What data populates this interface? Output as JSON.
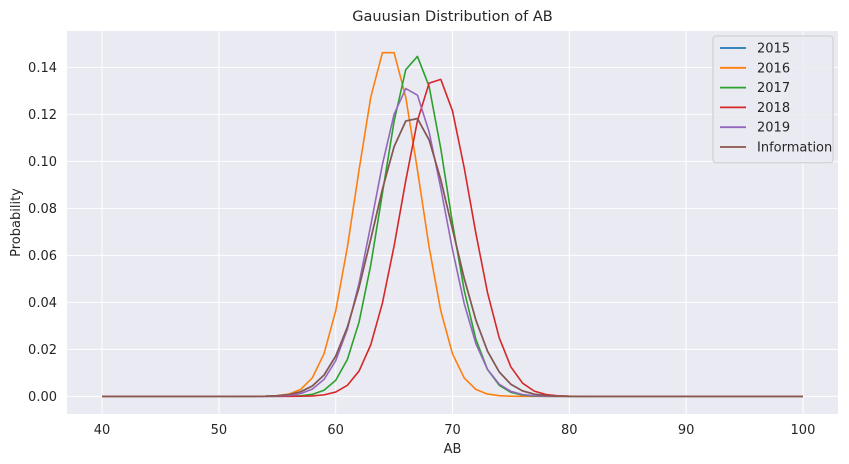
{
  "chart_data": {
    "type": "line",
    "title": "Gauusian Distribution of AB",
    "xlabel": "AB",
    "ylabel": "Probability",
    "xlim": [
      37,
      103
    ],
    "ylim": [
      -0.0075,
      0.1555
    ],
    "xticks": [
      40,
      50,
      60,
      70,
      80,
      90,
      100
    ],
    "yticks": [
      0.0,
      0.02,
      0.04,
      0.06,
      0.08,
      0.1,
      0.12,
      0.14
    ],
    "ytick_labels": [
      "0.00",
      "0.02",
      "0.04",
      "0.06",
      "0.08",
      "0.10",
      "0.12",
      "0.14"
    ],
    "grid": true,
    "legend_position": "top-right",
    "x_range": {
      "start": 40,
      "end": 100,
      "step": 1
    },
    "series": [
      {
        "name": "2015",
        "color": "#1f77b4",
        "mean": 66.6,
        "sd": 3.35
      },
      {
        "name": "2016",
        "color": "#ff7f0e",
        "mean": 64.5,
        "sd": 2.68
      },
      {
        "name": "2017",
        "color": "#2ca02c",
        "mean": 66.8,
        "sd": 2.75
      },
      {
        "name": "2018",
        "color": "#d62728",
        "mean": 68.6,
        "sd": 2.93
      },
      {
        "name": "2019",
        "color": "#9467bd",
        "mean": 66.3,
        "sd": 3.03
      },
      {
        "name": "Information",
        "color": "#8c564b",
        "mean": 66.6,
        "sd": 3.35
      }
    ]
  }
}
